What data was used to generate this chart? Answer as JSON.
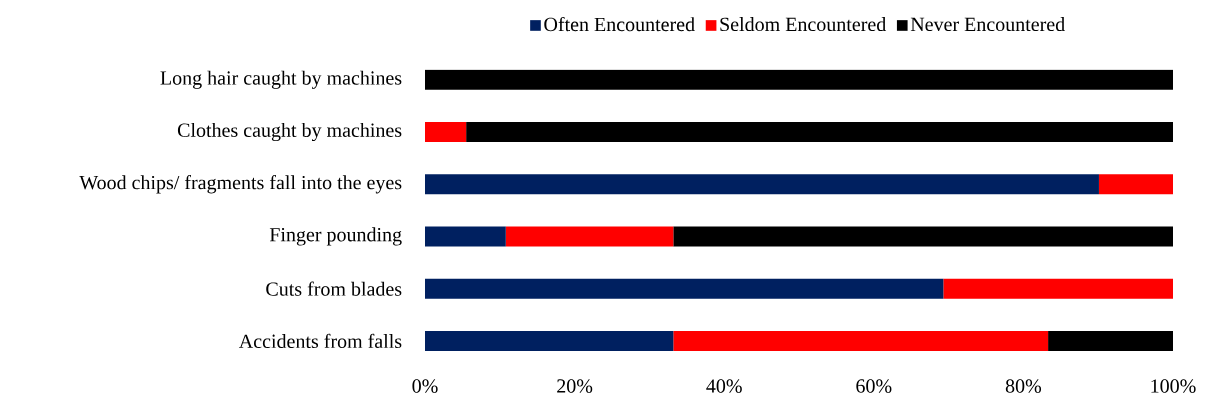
{
  "chart_data": {
    "type": "bar",
    "orientation": "horizontal",
    "stacked": true,
    "categories": [
      "Long hair caught by machines",
      "Clothes caught by machines",
      "Wood chips/ fragments fall into the eyes",
      "Finger pounding",
      "Cuts from blades",
      "Accidents from falls"
    ],
    "series": [
      {
        "name": "Often Encountered",
        "color": "#002060",
        "values": [
          0,
          0,
          90.1,
          10.8,
          69.3,
          33.2
        ]
      },
      {
        "name": "Seldom Encountered",
        "color": "#ff0000",
        "values": [
          0,
          5.5,
          9.9,
          22.4,
          30.7,
          50.1
        ]
      },
      {
        "name": "Never Encountered",
        "color": "#000000",
        "values": [
          100,
          94.5,
          0,
          66.8,
          0,
          16.7
        ]
      }
    ],
    "xlim": [
      0,
      100
    ],
    "xticks": [
      {
        "value": 0,
        "label": "0%"
      },
      {
        "value": 20,
        "label": "20%"
      },
      {
        "value": 40,
        "label": "40%"
      },
      {
        "value": 60,
        "label": "60%"
      },
      {
        "value": 80,
        "label": "80%"
      },
      {
        "value": 100,
        "label": "100%"
      }
    ],
    "legend": "top"
  }
}
